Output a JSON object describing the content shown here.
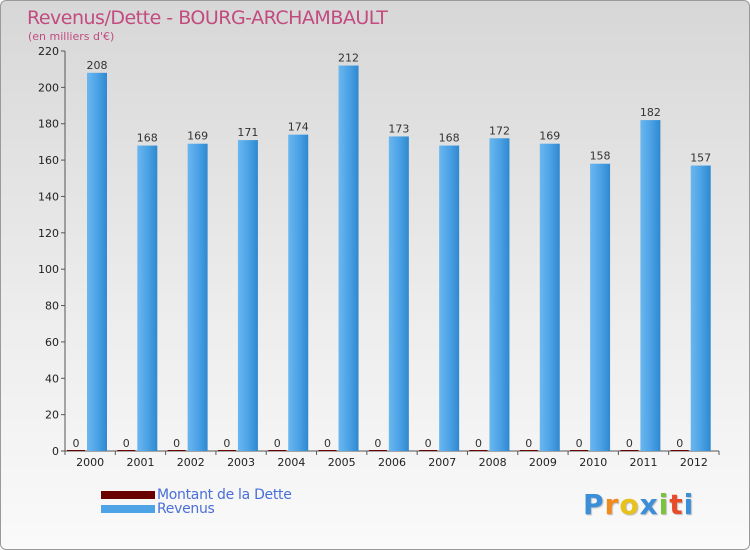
{
  "chart_data": {
    "type": "bar",
    "title": "Revenus/Dette - BOURG-ARCHAMBAULT",
    "subtitle": "(en milliers d'€)",
    "categories": [
      "2000",
      "2001",
      "2002",
      "2003",
      "2004",
      "2005",
      "2006",
      "2007",
      "2008",
      "2009",
      "2010",
      "2011",
      "2012"
    ],
    "series": [
      {
        "name": "Montant de la Dette",
        "color": "#6b0000",
        "values": [
          0,
          0,
          0,
          0,
          0,
          0,
          0,
          0,
          0,
          0,
          0,
          0,
          0
        ]
      },
      {
        "name": "Revenus",
        "color": "#4da3e6",
        "values": [
          208,
          168,
          169,
          171,
          174,
          212,
          173,
          168,
          172,
          169,
          158,
          182,
          157
        ]
      }
    ],
    "ylim": [
      0,
      220
    ],
    "yticks": [
      0,
      20,
      40,
      60,
      80,
      100,
      120,
      140,
      160,
      180,
      200,
      220
    ],
    "grid": false,
    "legend_position": "bottom-left"
  },
  "logo": {
    "letters": [
      "P",
      "r",
      "o",
      "x",
      "i",
      "t",
      "i"
    ],
    "colors": [
      "#3a8fd8",
      "#f08a1c",
      "#e8c21a",
      "#3a8fd8",
      "#7cc23e",
      "#e84b2a",
      "#3a8fd8"
    ]
  }
}
